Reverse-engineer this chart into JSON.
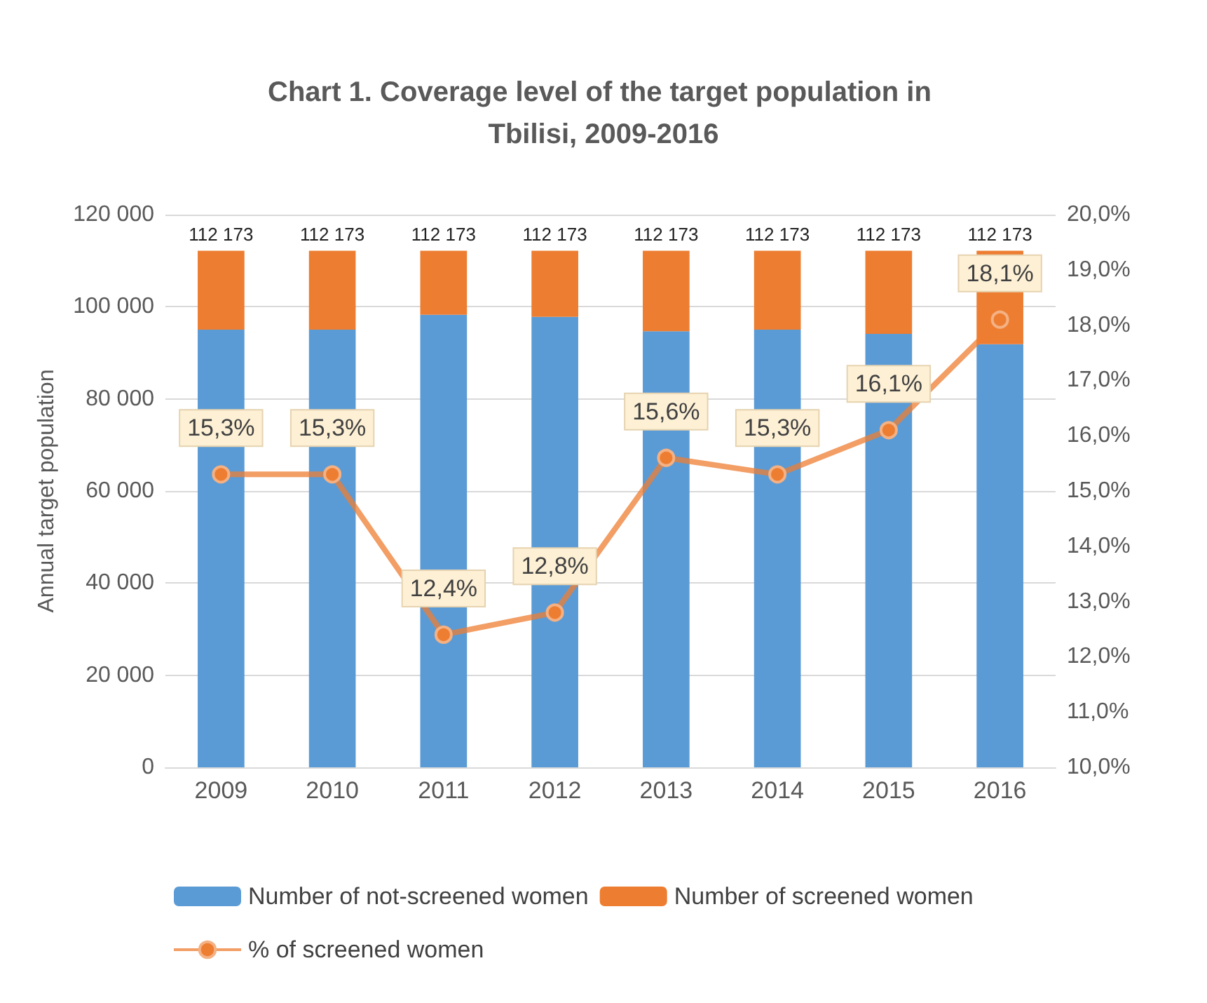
{
  "chart_data": {
    "type": "bar",
    "title": "Chart 1. Coverage level of the target population in Tbilisi, 2009-2016",
    "ylabel": "Annual target population",
    "categories": [
      "2009",
      "2010",
      "2011",
      "2012",
      "2013",
      "2014",
      "2015",
      "2016"
    ],
    "stacked": true,
    "series": [
      {
        "name": "Number of not-screened women",
        "color": "#5b9bd5",
        "values": [
          95011,
          95011,
          98264,
          97815,
          94674,
          95011,
          94113,
          91870
        ]
      },
      {
        "name": "Number of screened women",
        "color": "#ed7d31",
        "values": [
          17162,
          17162,
          13909,
          14358,
          17499,
          17162,
          18060,
          20303
        ]
      },
      {
        "name": "% of screened women",
        "type": "line",
        "axis": "y2",
        "color": "#ed7d31",
        "values": [
          15.3,
          15.3,
          12.4,
          12.8,
          15.6,
          15.3,
          16.1,
          18.1
        ],
        "value_labels": [
          "15,3%",
          "15,3%",
          "12,4%",
          "12,8%",
          "15,6%",
          "15,3%",
          "16,1%",
          "18,1%"
        ]
      }
    ],
    "totals": [
      "112 173",
      "112 173",
      "112 173",
      "112 173",
      "112 173",
      "112 173",
      "112 173",
      "112 173"
    ],
    "ylim": [
      0,
      120000
    ],
    "yticks": [
      {
        "value": 0,
        "label": "0"
      },
      {
        "value": 20000,
        "label": "20 000"
      },
      {
        "value": 40000,
        "label": "40 000"
      },
      {
        "value": 60000,
        "label": "60 000"
      },
      {
        "value": 80000,
        "label": "80 000"
      },
      {
        "value": 100000,
        "label": "100 000"
      },
      {
        "value": 120000,
        "label": "120 000"
      }
    ],
    "y2lim": [
      10,
      20
    ],
    "y2ticks": [
      {
        "value": 10,
        "label": "10,0%"
      },
      {
        "value": 11,
        "label": "11,0%"
      },
      {
        "value": 12,
        "label": "12,0%"
      },
      {
        "value": 13,
        "label": "13,0%"
      },
      {
        "value": 14,
        "label": "14,0%"
      },
      {
        "value": 15,
        "label": "15,0%"
      },
      {
        "value": 16,
        "label": "16,0%"
      },
      {
        "value": 17,
        "label": "17,0%"
      },
      {
        "value": 18,
        "label": "18,0%"
      },
      {
        "value": 19,
        "label": "19,0%"
      },
      {
        "value": 20,
        "label": "20,0%"
      }
    ],
    "grid": "y",
    "legend": "bottom",
    "marker": "circle"
  }
}
